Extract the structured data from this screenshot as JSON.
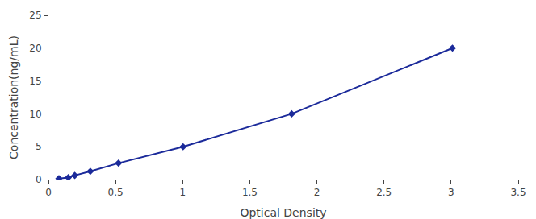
{
  "chart_data": {
    "type": "line",
    "x": [
      0.078,
      0.148,
      0.196,
      0.312,
      0.522,
      1.003,
      1.812,
      3.01
    ],
    "values": [
      0.156,
      0.312,
      0.625,
      1.25,
      2.5,
      5.0,
      10.0,
      20.0
    ],
    "color": "#1B2A9A",
    "marker": "diamond",
    "line_style": "solid",
    "xlabel": "Optical Density",
    "ylabel": "Concentration(ng/mL)",
    "xlim": [
      0,
      3.5
    ],
    "ylim": [
      0,
      25
    ],
    "xticks": [
      0,
      0.5,
      1,
      1.5,
      2,
      2.5,
      3,
      3.5
    ],
    "yticks": [
      0,
      5,
      10,
      15,
      20,
      25
    ],
    "grid": false
  }
}
